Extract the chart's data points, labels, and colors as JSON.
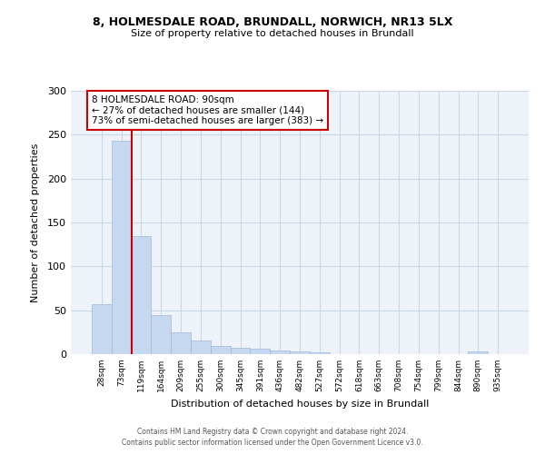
{
  "title_line1": "8, HOLMESDALE ROAD, BRUNDALL, NORWICH, NR13 5LX",
  "title_line2": "Size of property relative to detached houses in Brundall",
  "xlabel": "Distribution of detached houses by size in Brundall",
  "ylabel": "Number of detached properties",
  "categories": [
    "28sqm",
    "73sqm",
    "119sqm",
    "164sqm",
    "209sqm",
    "255sqm",
    "300sqm",
    "345sqm",
    "391sqm",
    "436sqm",
    "482sqm",
    "527sqm",
    "572sqm",
    "618sqm",
    "663sqm",
    "708sqm",
    "754sqm",
    "799sqm",
    "844sqm",
    "890sqm",
    "935sqm"
  ],
  "values": [
    57,
    243,
    135,
    44,
    25,
    16,
    9,
    7,
    6,
    4,
    3,
    2,
    0,
    0,
    0,
    0,
    0,
    0,
    0,
    3,
    0
  ],
  "bar_color": "#c5d8f0",
  "bar_edge_color": "#a0b8d8",
  "red_line_x": 1.5,
  "annotation_text": "8 HOLMESDALE ROAD: 90sqm\n← 27% of detached houses are smaller (144)\n73% of semi-detached houses are larger (383) →",
  "annotation_box_color": "#ffffff",
  "annotation_box_edge": "#cc0000",
  "red_line_color": "#cc0000",
  "grid_color": "#c8d8e8",
  "background_color": "#eef3fa",
  "ylim": [
    0,
    300
  ],
  "yticks": [
    0,
    50,
    100,
    150,
    200,
    250,
    300
  ],
  "footer_line1": "Contains HM Land Registry data © Crown copyright and database right 2024.",
  "footer_line2": "Contains public sector information licensed under the Open Government Licence v3.0."
}
